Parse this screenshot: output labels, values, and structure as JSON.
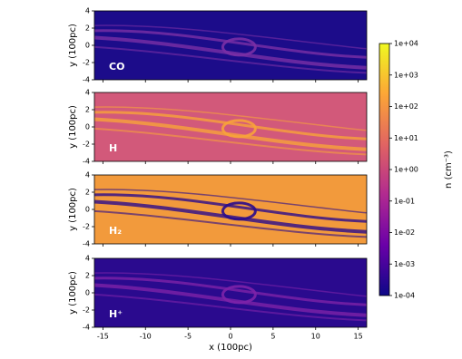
{
  "chart_data": [
    {
      "type": "heatmap",
      "label": "CO",
      "ylabel": "y (100pc)",
      "xlim": [
        -16,
        16
      ],
      "ylim": [
        -4,
        4
      ],
      "yticks": [
        -4,
        -2,
        0,
        2,
        4
      ],
      "color": "#1c0c8a",
      "streak_color": "#7a2fa5"
    },
    {
      "type": "heatmap",
      "label": "H",
      "ylabel": "y (100pc)",
      "xlim": [
        -16,
        16
      ],
      "ylim": [
        -4,
        4
      ],
      "yticks": [
        -4,
        -2,
        0,
        2,
        4
      ],
      "color": "#d2597a",
      "streak_color": "#f7a23a"
    },
    {
      "type": "heatmap",
      "label": "H₂",
      "ylabel": "y (100pc)",
      "xlim": [
        -16,
        16
      ],
      "ylim": [
        -4,
        4
      ],
      "yticks": [
        -4,
        -2,
        0,
        2,
        4
      ],
      "color": "#f29a3c",
      "streak_color": "#2a0b8c"
    },
    {
      "type": "heatmap",
      "label": "H⁺",
      "ylabel": "y (100pc)",
      "xlabel": "x (100pc)",
      "xlim": [
        -16,
        16
      ],
      "ylim": [
        -4,
        4
      ],
      "yticks": [
        -4,
        -2,
        0,
        2,
        4
      ],
      "xticks": [
        -15,
        -10,
        -5,
        0,
        5,
        10,
        15
      ],
      "color": "#2a0a8e",
      "streak_color": "#7d22a8"
    },
    {
      "type": "colorbar",
      "label": "n (cm⁻³)",
      "log": true,
      "colors": [
        "#0d0887",
        "#6a00a8",
        "#b12a90",
        "#e16462",
        "#fca636",
        "#f0f921"
      ],
      "ylim": [
        0.0001,
        10000
      ],
      "yticks": [
        {
          "value": 0.0001,
          "label": "1e-04"
        },
        {
          "value": 0.001,
          "label": "1e-03"
        },
        {
          "value": 0.01,
          "label": "1e-02"
        },
        {
          "value": 0.1,
          "label": "1e-01"
        },
        {
          "value": 1,
          "label": "1e+00"
        },
        {
          "value": 10,
          "label": "1e+01"
        },
        {
          "value": 100,
          "label": "1e+02"
        },
        {
          "value": 1000,
          "label": "1e+03"
        },
        {
          "value": 10000,
          "label": "1e+04"
        }
      ]
    }
  ]
}
